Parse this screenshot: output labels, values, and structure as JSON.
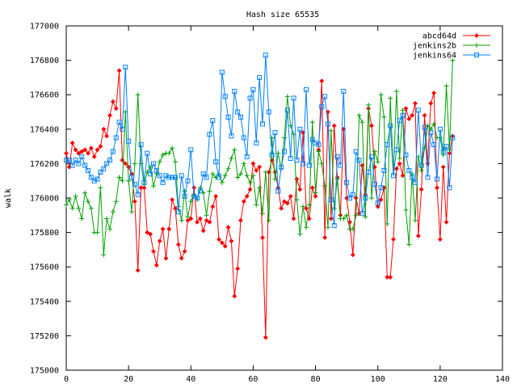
{
  "chart_data": {
    "type": "line",
    "title": "Hash size 65535",
    "xlabel": "",
    "ylabel": "walk",
    "xlim": [
      0,
      140
    ],
    "ylim": [
      175000,
      177000
    ],
    "x_ticks": [
      0,
      20,
      40,
      60,
      80,
      100,
      120,
      140
    ],
    "y_ticks": [
      175000,
      175200,
      175400,
      175600,
      175800,
      176000,
      176200,
      176400,
      176600,
      176800,
      177000
    ],
    "grid": false,
    "legend_position": "top-right",
    "series": [
      {
        "name": "abcd64d",
        "color": "#ff0000",
        "marker": "diamond",
        "values": [
          176260,
          176180,
          176320,
          176280,
          176260,
          176270,
          176280,
          176260,
          176290,
          176240,
          176280,
          176300,
          176400,
          176360,
          176480,
          176560,
          176520,
          176740,
          176220,
          176200,
          176180,
          176140,
          175980,
          175580,
          176060,
          176060,
          175800,
          175790,
          175690,
          175610,
          175750,
          175820,
          175650,
          175820,
          175990,
          175940,
          175730,
          175650,
          175690,
          175870,
          175880,
          176060,
          175860,
          175880,
          175810,
          175870,
          175860,
          175950,
          176010,
          175760,
          175740,
          175720,
          175830,
          175750,
          175430,
          175590,
          175870,
          175980,
          176010,
          176050,
          176200,
          176160,
          176180,
          175770,
          175190,
          176150,
          176220,
          176150,
          176060,
          175940,
          175980,
          175970,
          176010,
          175880,
          176110,
          176050,
          176380,
          175940,
          175880,
          176060,
          176010,
          176280,
          176680,
          175770,
          176500,
          175880,
          176420,
          176120,
          175900,
          176400,
          176000,
          175860,
          175670,
          176000,
          175910,
          176190,
          176020,
          176520,
          176420,
          176180,
          175950,
          175990,
          176060,
          175540,
          175540,
          175760,
          176170,
          176200,
          176130,
          176520,
          176460,
          176480,
          176550,
          175780,
          176050,
          176480,
          176200,
          176550,
          176610,
          176060,
          175760,
          176180,
          175860,
          176260,
          176360
        ]
      },
      {
        "name": "jenkins2b",
        "color": "#00a000",
        "marker": "plus",
        "values": [
          175960,
          175990,
          175940,
          176010,
          175940,
          175880,
          176030,
          175980,
          175940,
          175800,
          175800,
          176060,
          175670,
          175880,
          175820,
          175920,
          175980,
          176120,
          176100,
          176500,
          176100,
          175920,
          176200,
          176600,
          176200,
          176080,
          176150,
          176180,
          176070,
          176140,
          176210,
          176250,
          176260,
          176260,
          176290,
          176210,
          175950,
          175870,
          176040,
          175890,
          175980,
          176020,
          175990,
          176060,
          176030,
          175900,
          176040,
          176140,
          176120,
          176140,
          176090,
          176130,
          176170,
          176230,
          176280,
          176120,
          176140,
          176200,
          176130,
          176090,
          176130,
          175960,
          176060,
          175910,
          176150,
          175870,
          176350,
          176110,
          176260,
          176170,
          176350,
          176590,
          176420,
          176370,
          175990,
          175790,
          175950,
          175830,
          175960,
          176440,
          176030,
          176270,
          176200,
          176070,
          175830,
          176390,
          175940,
          176110,
          175880,
          175880,
          175900,
          175820,
          175820,
          175900,
          176480,
          176440,
          175890,
          176540,
          176000,
          176270,
          176210,
          176600,
          176470,
          175850,
          176580,
          176140,
          176620,
          176230,
          176510,
          175930,
          175730,
          176140,
          175870,
          176240,
          176160,
          176290,
          176420,
          176400,
          176430,
          176350,
          176350,
          176250,
          176650,
          176280,
          176800
        ]
      },
      {
        "name": "jenkins64",
        "color": "#0080ff",
        "marker": "square",
        "values": [
          176220,
          176220,
          176190,
          176220,
          176200,
          176240,
          176190,
          176160,
          176120,
          176100,
          176110,
          176150,
          176170,
          176200,
          176220,
          176270,
          176350,
          176440,
          176400,
          176760,
          176330,
          176120,
          176080,
          176020,
          176310,
          176090,
          176260,
          176140,
          176200,
          176160,
          176130,
          176090,
          176130,
          176120,
          176120,
          176120,
          175920,
          176130,
          176010,
          176100,
          176280,
          176010,
          176000,
          176040,
          176140,
          176120,
          176370,
          176450,
          176210,
          176120,
          176730,
          176590,
          176470,
          176360,
          176620,
          176500,
          176470,
          176350,
          176240,
          176580,
          176630,
          176320,
          176700,
          176430,
          176830,
          176500,
          176250,
          176380,
          176040,
          176180,
          176270,
          176510,
          176230,
          176580,
          176220,
          176400,
          176200,
          176630,
          176190,
          176340,
          176320,
          176310,
          176530,
          176590,
          176430,
          175990,
          175840,
          176240,
          176190,
          176620,
          176090,
          176000,
          176020,
          176270,
          176220,
          175910,
          176000,
          176150,
          176240,
          176080,
          175970,
          176060,
          176160,
          176310,
          176420,
          176130,
          176280,
          176450,
          176480,
          176250,
          176160,
          176120,
          176090,
          176510,
          176190,
          176410,
          176120,
          176380,
          176310,
          176110,
          176400,
          176270,
          176300,
          176060,
          176350
        ]
      }
    ]
  }
}
